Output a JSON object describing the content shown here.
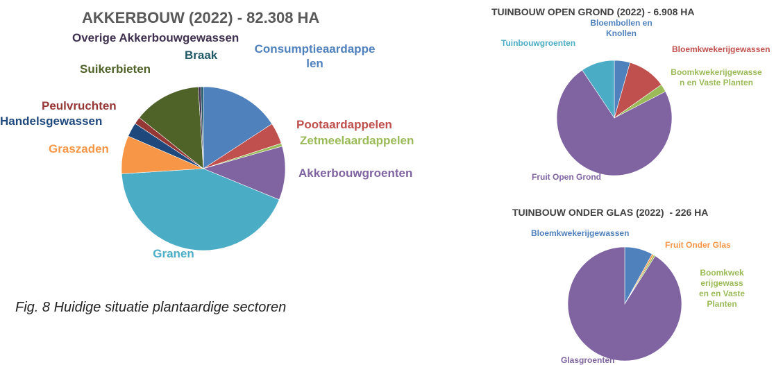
{
  "caption": "Fig. 8 Huidige situatie plantaardige sectoren",
  "chart_data": [
    {
      "type": "pie",
      "title": "AKKERBOUW (2022) - 82.308 HA",
      "categories": [
        "Consumptieaardappelen",
        "Pootaardappelen",
        "Zetmeelaardappelen",
        "Akkerbouwgroenten",
        "Granen",
        "Graszaden",
        "Handelsgewassen",
        "Peulvruchten",
        "Suikerbieten",
        "Overige Akkerbouwgewassen",
        "Braak"
      ],
      "values": [
        15.8,
        4.2,
        0.6,
        10.6,
        42.8,
        7.5,
        2.8,
        1.4,
        13.3,
        0.5,
        0.5
      ],
      "colors": [
        "#4f81bd",
        "#c0504d",
        "#9bbb59",
        "#8064a2",
        "#4bacc6",
        "#f79646",
        "#1f497d",
        "#953735",
        "#4f6228",
        "#403151",
        "#215967"
      ]
    },
    {
      "type": "pie",
      "title": "TUINBOUW OPEN GROND (2022) - 6.908 HA",
      "categories": [
        "Bloembollen en Knollen",
        "Bloemkwekerijgewassen",
        "Boomkwekerijgewassen en Vaste Planten",
        "Fruit Open Grond",
        "Tuinbouwgroenten"
      ],
      "values": [
        4.4,
        10.8,
        2.2,
        73.2,
        9.4
      ],
      "colors": [
        "#4f81bd",
        "#c0504d",
        "#9bbb59",
        "#8064a2",
        "#4bacc6"
      ]
    },
    {
      "type": "pie",
      "title": "TUINBOUW ONDER GLAS (2022)  - 226 HA",
      "categories": [
        "Bloemkwekerijgewassen",
        "Fruit Onder Glas",
        "Boomkwekerijgewassen en Vaste Planten",
        "Glasgroenten"
      ],
      "values": [
        8,
        0.5,
        0.5,
        91
      ],
      "colors": [
        "#4f81bd",
        "#f79646",
        "#9bbb59",
        "#8064a2"
      ]
    }
  ]
}
